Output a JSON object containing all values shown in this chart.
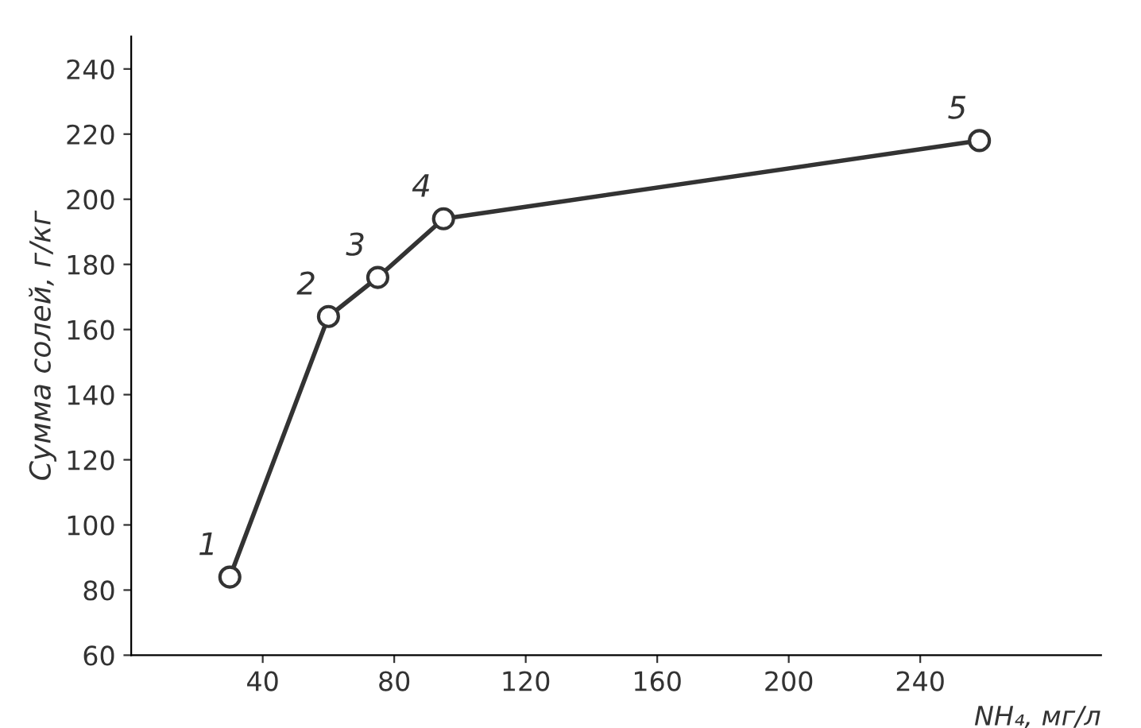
{
  "chart_data": {
    "type": "line",
    "xlabel": "NH₄, мг/л",
    "ylabel": "Сумма солей, г/кг",
    "x": [
      30,
      60,
      75,
      95,
      258
    ],
    "series": [
      {
        "color": "#333333",
        "values": [
          84,
          164,
          176,
          194,
          218
        ]
      }
    ],
    "marker": "circle",
    "line_style": "solid",
    "grid": false,
    "legend": false,
    "xlim": [
      0,
      295
    ],
    "ylim": [
      60,
      250
    ],
    "xticks": [
      40,
      80,
      120,
      160,
      200,
      240
    ],
    "yticks": [
      60,
      80,
      100,
      120,
      140,
      160,
      180,
      200,
      220,
      240
    ],
    "annotations": [
      {
        "text": "1",
        "x": 30,
        "y": 84
      },
      {
        "text": "2",
        "x": 60,
        "y": 164
      },
      {
        "text": "3",
        "x": 75,
        "y": 176
      },
      {
        "text": "4",
        "x": 95,
        "y": 194
      },
      {
        "text": "5",
        "x": 258,
        "y": 218
      }
    ]
  }
}
